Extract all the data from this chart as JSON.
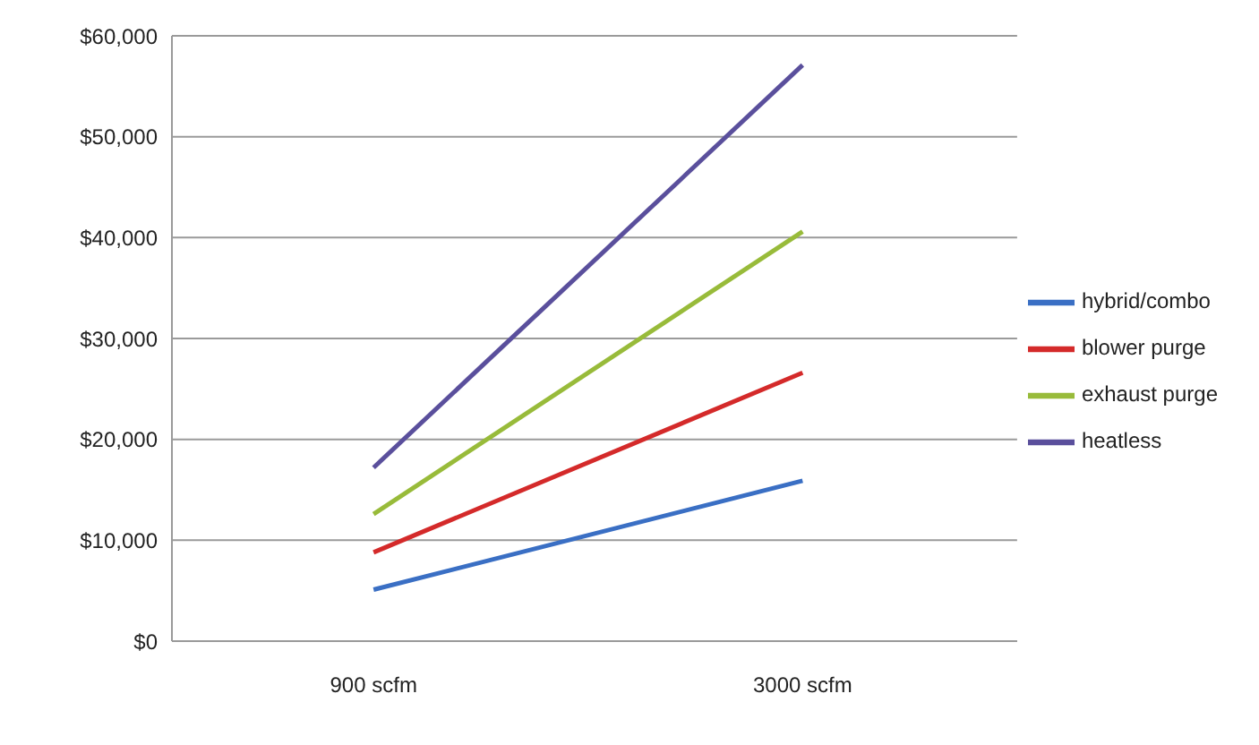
{
  "chart_data": {
    "type": "line",
    "categories": [
      "900 scfm",
      "3000 scfm"
    ],
    "series": [
      {
        "name": "hybrid/combo",
        "color": "#3a6fc4",
        "values": [
          5100,
          15900
        ]
      },
      {
        "name": "blower purge",
        "color": "#d42a2a",
        "values": [
          8800,
          26600
        ]
      },
      {
        "name": "exhaust purge",
        "color": "#98bb3a",
        "values": [
          12600,
          40600
        ]
      },
      {
        "name": "heatless",
        "color": "#5a4f9c",
        "values": [
          17200,
          57100
        ]
      }
    ],
    "ylim": [
      0,
      60000
    ],
    "yticks": [
      {
        "value": 0,
        "label": "$0"
      },
      {
        "value": 10000,
        "label": "$10,000"
      },
      {
        "value": 20000,
        "label": "$20,000"
      },
      {
        "value": 30000,
        "label": "$30,000"
      },
      {
        "value": 40000,
        "label": "$40,000"
      },
      {
        "value": 50000,
        "label": "$50,000"
      },
      {
        "value": 60000,
        "label": "$60,000"
      }
    ],
    "grid": "y",
    "legend": "right",
    "marker": "none",
    "line_style": "solid"
  }
}
